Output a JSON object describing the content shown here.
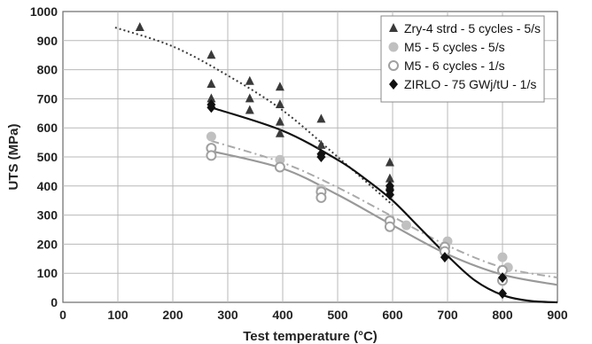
{
  "chart_data": {
    "type": "scatter",
    "xlabel": "Test temperature (°C)",
    "ylabel": "UTS (MPa)",
    "xlim": [
      0,
      900
    ],
    "ylim": [
      0,
      1000
    ],
    "x_ticks": [
      0,
      100,
      200,
      300,
      400,
      500,
      600,
      700,
      800,
      900
    ],
    "y_ticks": [
      0,
      100,
      200,
      300,
      400,
      500,
      600,
      700,
      800,
      900,
      1000
    ],
    "grid": true,
    "legend_position": "top-right",
    "series": [
      {
        "name": "Zry-4 strd - 5 cycles - 5/s",
        "marker": "triangle",
        "color": "#3a3a3a",
        "points": [
          [
            140,
            945
          ],
          [
            270,
            850
          ],
          [
            270,
            750
          ],
          [
            270,
            700
          ],
          [
            340,
            760
          ],
          [
            340,
            700
          ],
          [
            340,
            660
          ],
          [
            395,
            740
          ],
          [
            395,
            680
          ],
          [
            395,
            620
          ],
          [
            395,
            580
          ],
          [
            470,
            630
          ],
          [
            470,
            540
          ],
          [
            470,
            510
          ],
          [
            595,
            480
          ],
          [
            595,
            425
          ],
          [
            595,
            400
          ],
          [
            595,
            380
          ]
        ],
        "trend": {
          "style": "dotted",
          "color": "#3a3a3a",
          "points": [
            [
              95,
              945
            ],
            [
              200,
              880
            ],
            [
              300,
              780
            ],
            [
              400,
              660
            ],
            [
              500,
              500
            ],
            [
              600,
              335
            ]
          ]
        }
      },
      {
        "name": "M5 - 5 cycles - 5/s",
        "marker": "circle-filled",
        "color": "#c0c0c0",
        "points": [
          [
            270,
            570
          ],
          [
            395,
            490
          ],
          [
            470,
            390
          ],
          [
            595,
            270
          ],
          [
            625,
            265
          ],
          [
            700,
            210
          ],
          [
            800,
            155
          ],
          [
            810,
            120
          ]
        ],
        "trend": {
          "style": "dashdot",
          "color": "#aaaaaa",
          "points": [
            [
              270,
              555
            ],
            [
              400,
              480
            ],
            [
              500,
              395
            ],
            [
              600,
              295
            ],
            [
              700,
              195
            ],
            [
              800,
              120
            ],
            [
              900,
              85
            ]
          ]
        }
      },
      {
        "name": "M5 - 6 cycles - 1/s",
        "marker": "circle-open",
        "color": "#a0a0a0",
        "points": [
          [
            270,
            530
          ],
          [
            270,
            505
          ],
          [
            395,
            465
          ],
          [
            470,
            380
          ],
          [
            470,
            360
          ],
          [
            595,
            280
          ],
          [
            595,
            260
          ],
          [
            695,
            190
          ],
          [
            695,
            175
          ],
          [
            800,
            110
          ],
          [
            800,
            75
          ]
        ],
        "trend": {
          "style": "solid",
          "color": "#999999",
          "points": [
            [
              270,
              520
            ],
            [
              400,
              460
            ],
            [
              500,
              370
            ],
            [
              600,
              265
            ],
            [
              700,
              165
            ],
            [
              800,
              95
            ],
            [
              900,
              60
            ]
          ]
        }
      },
      {
        "name": "ZIRLO - 75 GWj/tU - 1/s",
        "marker": "diamond",
        "color": "#111111",
        "points": [
          [
            270,
            680
          ],
          [
            270,
            670
          ],
          [
            470,
            510
          ],
          [
            470,
            500
          ],
          [
            595,
            400
          ],
          [
            595,
            385
          ],
          [
            595,
            370
          ],
          [
            695,
            155
          ],
          [
            800,
            85
          ],
          [
            800,
            30
          ]
        ],
        "trend": {
          "style": "solid",
          "color": "#111111",
          "points": [
            [
              270,
              670
            ],
            [
              400,
              590
            ],
            [
              500,
              490
            ],
            [
              550,
              425
            ],
            [
              600,
              350
            ],
            [
              650,
              255
            ],
            [
              700,
              160
            ],
            [
              750,
              75
            ],
            [
              800,
              25
            ],
            [
              850,
              5
            ],
            [
              900,
              0
            ]
          ]
        }
      }
    ]
  }
}
